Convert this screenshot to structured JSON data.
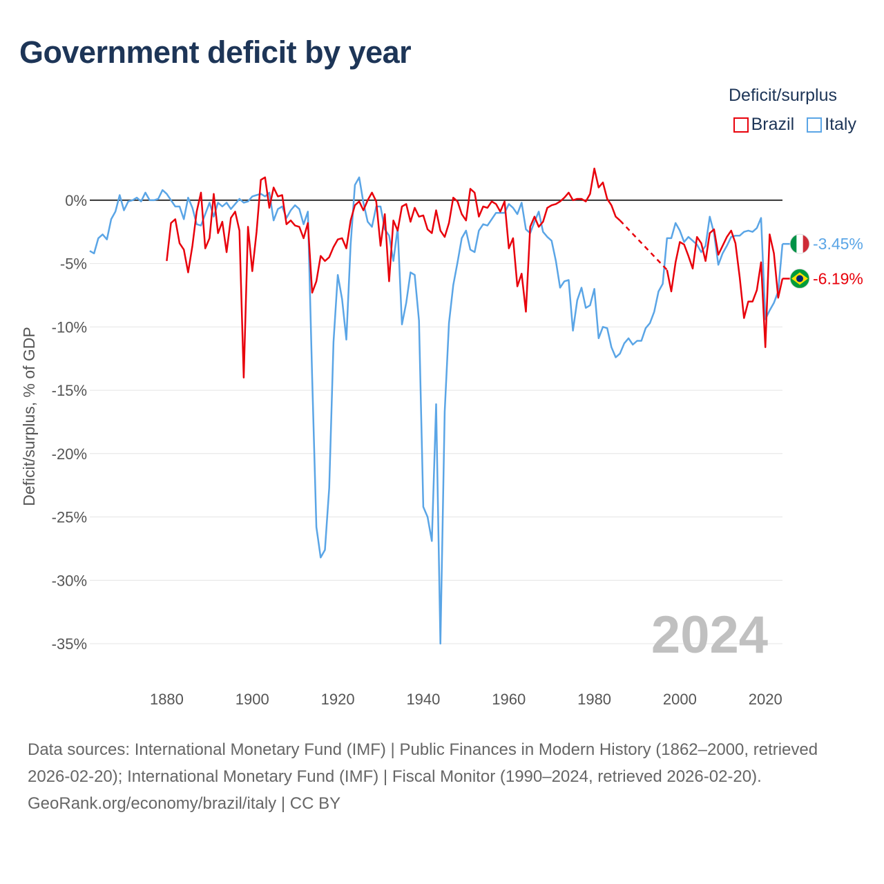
{
  "page_title": "Government deficit by year",
  "legend": {
    "title": "Deficit/surplus",
    "items": [
      {
        "name": "Brazil",
        "color": "#e8000b"
      },
      {
        "name": "Italy",
        "color": "#5aa5e6"
      }
    ]
  },
  "footer": {
    "sources": "Data sources: International Monetary Fund (IMF) | Public Finances in Modern History (1862–2000, retrieved 2026-02-20); International Monetary Fund (IMF) | Fiscal Monitor (1990–2024, retrieved 2026-02-20).",
    "credit": "GeoRank.org/economy/brazil/italy | CC BY"
  },
  "chart_data": {
    "type": "line",
    "title": "Government deficit by year",
    "xlabel": "",
    "ylabel": "Deficit/surplus, % of GDP",
    "xlim": [
      1862,
      2024
    ],
    "ylim": [
      -35,
      2.5
    ],
    "xticks": [
      1880,
      1900,
      1920,
      1940,
      1960,
      1980,
      2000,
      2020
    ],
    "x_tick_labels": [
      "1880",
      "1900",
      "1920",
      "1940",
      "1960",
      "1980",
      "2000",
      "2020"
    ],
    "yticks": [
      0,
      -5,
      -10,
      -15,
      -20,
      -25,
      -30,
      -35
    ],
    "y_tick_labels": [
      "0%",
      "-5%",
      "-10%",
      "-15%",
      "-20%",
      "-25%",
      "-30%",
      "-35%"
    ],
    "year_label": "2024",
    "grid": true,
    "series": [
      {
        "name": "Brazil",
        "color": "#e8000b",
        "end_label": "-6.19%",
        "flag": "brazil",
        "gap_dashed": [
          1986,
          1997
        ],
        "points": [
          [
            1880,
            -4.8
          ],
          [
            1881,
            -1.8
          ],
          [
            1882,
            -1.5
          ],
          [
            1883,
            -3.4
          ],
          [
            1884,
            -3.9
          ],
          [
            1885,
            -5.7
          ],
          [
            1886,
            -3.6
          ],
          [
            1887,
            -0.9
          ],
          [
            1888,
            0.6
          ],
          [
            1889,
            -3.8
          ],
          [
            1890,
            -3.0
          ],
          [
            1891,
            0.5
          ],
          [
            1892,
            -2.6
          ],
          [
            1893,
            -1.7
          ],
          [
            1894,
            -4.1
          ],
          [
            1895,
            -1.4
          ],
          [
            1896,
            -0.9
          ],
          [
            1897,
            -2.4
          ],
          [
            1898,
            -14.0
          ],
          [
            1899,
            -2.1
          ],
          [
            1900,
            -5.6
          ],
          [
            1901,
            -2.5
          ],
          [
            1902,
            1.6
          ],
          [
            1903,
            1.8
          ],
          [
            1904,
            -0.6
          ],
          [
            1905,
            1.0
          ],
          [
            1906,
            0.3
          ],
          [
            1907,
            0.4
          ],
          [
            1908,
            -1.9
          ],
          [
            1909,
            -1.6
          ],
          [
            1910,
            -2.0
          ],
          [
            1911,
            -2.1
          ],
          [
            1912,
            -3.0
          ],
          [
            1913,
            -1.8
          ],
          [
            1914,
            -7.3
          ],
          [
            1915,
            -6.4
          ],
          [
            1916,
            -4.4
          ],
          [
            1917,
            -4.8
          ],
          [
            1918,
            -4.5
          ],
          [
            1919,
            -3.7
          ],
          [
            1920,
            -3.1
          ],
          [
            1921,
            -3.0
          ],
          [
            1922,
            -3.8
          ],
          [
            1923,
            -1.6
          ],
          [
            1924,
            -0.4
          ],
          [
            1925,
            -0.1
          ],
          [
            1926,
            -0.8
          ],
          [
            1927,
            0.0
          ],
          [
            1928,
            0.6
          ],
          [
            1929,
            -0.1
          ],
          [
            1930,
            -3.6
          ],
          [
            1931,
            -1.1
          ],
          [
            1932,
            -6.4
          ],
          [
            1933,
            -1.6
          ],
          [
            1934,
            -2.4
          ],
          [
            1935,
            -0.5
          ],
          [
            1936,
            -0.3
          ],
          [
            1937,
            -1.7
          ],
          [
            1938,
            -0.6
          ],
          [
            1939,
            -1.3
          ],
          [
            1940,
            -1.2
          ],
          [
            1941,
            -2.3
          ],
          [
            1942,
            -2.6
          ],
          [
            1943,
            -0.8
          ],
          [
            1944,
            -2.4
          ],
          [
            1945,
            -2.9
          ],
          [
            1946,
            -1.8
          ],
          [
            1947,
            0.2
          ],
          [
            1948,
            -0.1
          ],
          [
            1949,
            -1.1
          ],
          [
            1950,
            -1.6
          ],
          [
            1951,
            0.9
          ],
          [
            1952,
            0.6
          ],
          [
            1953,
            -1.3
          ],
          [
            1954,
            -0.5
          ],
          [
            1955,
            -0.6
          ],
          [
            1956,
            -0.1
          ],
          [
            1957,
            -0.3
          ],
          [
            1958,
            -0.9
          ],
          [
            1959,
            -0.1
          ],
          [
            1960,
            -3.8
          ],
          [
            1961,
            -3.0
          ],
          [
            1962,
            -6.8
          ],
          [
            1963,
            -5.8
          ],
          [
            1964,
            -8.8
          ],
          [
            1965,
            -2.1
          ],
          [
            1966,
            -1.3
          ],
          [
            1967,
            -2.1
          ],
          [
            1968,
            -1.7
          ],
          [
            1969,
            -0.6
          ],
          [
            1970,
            -0.4
          ],
          [
            1971,
            -0.3
          ],
          [
            1972,
            -0.1
          ],
          [
            1973,
            0.2
          ],
          [
            1974,
            0.6
          ],
          [
            1975,
            0.0
          ],
          [
            1976,
            0.1
          ],
          [
            1977,
            0.1
          ],
          [
            1978,
            -0.1
          ],
          [
            1979,
            0.5
          ],
          [
            1980,
            2.5
          ],
          [
            1981,
            1.0
          ],
          [
            1982,
            1.4
          ],
          [
            1983,
            0.1
          ],
          [
            1984,
            -0.4
          ],
          [
            1985,
            -1.3
          ],
          [
            1986,
            -1.6
          ],
          [
            1997,
            -5.5
          ],
          [
            1998,
            -7.2
          ],
          [
            1999,
            -4.9
          ],
          [
            2000,
            -3.3
          ],
          [
            2001,
            -3.5
          ],
          [
            2002,
            -4.4
          ],
          [
            2003,
            -5.4
          ],
          [
            2004,
            -2.9
          ],
          [
            2005,
            -3.4
          ],
          [
            2006,
            -4.8
          ],
          [
            2007,
            -2.6
          ],
          [
            2008,
            -2.3
          ],
          [
            2009,
            -4.3
          ],
          [
            2010,
            -3.6
          ],
          [
            2011,
            -2.9
          ],
          [
            2012,
            -2.4
          ],
          [
            2013,
            -3.4
          ],
          [
            2014,
            -6.1
          ],
          [
            2015,
            -9.3
          ],
          [
            2016,
            -8.0
          ],
          [
            2017,
            -8.0
          ],
          [
            2018,
            -7.1
          ],
          [
            2019,
            -4.9
          ],
          [
            2020,
            -11.6
          ],
          [
            2021,
            -2.7
          ],
          [
            2022,
            -4.2
          ],
          [
            2023,
            -7.7
          ],
          [
            2024,
            -6.19
          ]
        ]
      },
      {
        "name": "Italy",
        "color": "#5aa5e6",
        "end_label": "-3.45%",
        "flag": "italy",
        "points": [
          [
            1862,
            -4.0
          ],
          [
            1863,
            -4.2
          ],
          [
            1864,
            -3.0
          ],
          [
            1865,
            -2.7
          ],
          [
            1866,
            -3.1
          ],
          [
            1867,
            -1.5
          ],
          [
            1868,
            -0.9
          ],
          [
            1869,
            0.4
          ],
          [
            1870,
            -0.8
          ],
          [
            1871,
            -0.1
          ],
          [
            1872,
            0.0
          ],
          [
            1873,
            0.2
          ],
          [
            1874,
            -0.1
          ],
          [
            1875,
            0.6
          ],
          [
            1876,
            0.0
          ],
          [
            1877,
            0.0
          ],
          [
            1878,
            0.1
          ],
          [
            1879,
            0.8
          ],
          [
            1880,
            0.5
          ],
          [
            1881,
            0.0
          ],
          [
            1882,
            -0.5
          ],
          [
            1883,
            -0.5
          ],
          [
            1884,
            -1.5
          ],
          [
            1885,
            0.2
          ],
          [
            1886,
            -0.6
          ],
          [
            1887,
            -1.9
          ],
          [
            1888,
            -2.0
          ],
          [
            1889,
            -1.1
          ],
          [
            1890,
            -0.2
          ],
          [
            1891,
            -1.3
          ],
          [
            1892,
            -0.2
          ],
          [
            1893,
            -0.5
          ],
          [
            1894,
            -0.2
          ],
          [
            1895,
            -0.7
          ],
          [
            1896,
            -0.3
          ],
          [
            1897,
            0.1
          ],
          [
            1898,
            -0.2
          ],
          [
            1899,
            -0.1
          ],
          [
            1900,
            0.3
          ],
          [
            1901,
            0.4
          ],
          [
            1902,
            0.5
          ],
          [
            1903,
            0.3
          ],
          [
            1904,
            0.6
          ],
          [
            1905,
            -1.6
          ],
          [
            1906,
            -0.7
          ],
          [
            1907,
            -0.5
          ],
          [
            1908,
            -1.4
          ],
          [
            1909,
            -0.8
          ],
          [
            1910,
            -0.4
          ],
          [
            1911,
            -0.7
          ],
          [
            1912,
            -1.9
          ],
          [
            1913,
            -0.9
          ],
          [
            1914,
            -14.0
          ],
          [
            1915,
            -25.8
          ],
          [
            1916,
            -28.2
          ],
          [
            1917,
            -27.6
          ],
          [
            1918,
            -22.7
          ],
          [
            1919,
            -11.2
          ],
          [
            1920,
            -5.9
          ],
          [
            1921,
            -7.8
          ],
          [
            1922,
            -11.0
          ],
          [
            1923,
            -3.5
          ],
          [
            1924,
            1.2
          ],
          [
            1925,
            1.8
          ],
          [
            1926,
            -0.2
          ],
          [
            1927,
            -1.7
          ],
          [
            1928,
            -2.1
          ],
          [
            1929,
            -0.5
          ],
          [
            1930,
            -0.5
          ],
          [
            1931,
            -2.3
          ],
          [
            1932,
            -2.8
          ],
          [
            1933,
            -4.8
          ],
          [
            1934,
            -2.2
          ],
          [
            1935,
            -9.8
          ],
          [
            1936,
            -8.1
          ],
          [
            1937,
            -5.7
          ],
          [
            1938,
            -5.9
          ],
          [
            1939,
            -9.5
          ],
          [
            1940,
            -24.2
          ],
          [
            1941,
            -25.0
          ],
          [
            1942,
            -26.9
          ],
          [
            1943,
            -16.1
          ],
          [
            1944,
            -35.0
          ],
          [
            1945,
            -16.7
          ],
          [
            1946,
            -9.7
          ],
          [
            1947,
            -6.7
          ],
          [
            1948,
            -4.9
          ],
          [
            1949,
            -3.0
          ],
          [
            1950,
            -2.4
          ],
          [
            1951,
            -3.9
          ],
          [
            1952,
            -4.1
          ],
          [
            1953,
            -2.4
          ],
          [
            1954,
            -1.9
          ],
          [
            1955,
            -2.0
          ],
          [
            1956,
            -1.5
          ],
          [
            1957,
            -1.0
          ],
          [
            1958,
            -1.0
          ],
          [
            1959,
            -1.0
          ],
          [
            1960,
            -0.3
          ],
          [
            1961,
            -0.6
          ],
          [
            1962,
            -1.1
          ],
          [
            1963,
            -0.2
          ],
          [
            1964,
            -2.3
          ],
          [
            1965,
            -2.6
          ],
          [
            1966,
            -1.7
          ],
          [
            1967,
            -0.9
          ],
          [
            1968,
            -2.5
          ],
          [
            1969,
            -2.9
          ],
          [
            1970,
            -3.2
          ],
          [
            1971,
            -4.8
          ],
          [
            1972,
            -6.9
          ],
          [
            1973,
            -6.4
          ],
          [
            1974,
            -6.3
          ],
          [
            1975,
            -10.3
          ],
          [
            1976,
            -7.9
          ],
          [
            1977,
            -6.9
          ],
          [
            1978,
            -8.5
          ],
          [
            1979,
            -8.3
          ],
          [
            1980,
            -7.0
          ],
          [
            1981,
            -10.9
          ],
          [
            1982,
            -10.0
          ],
          [
            1983,
            -10.1
          ],
          [
            1984,
            -11.6
          ],
          [
            1985,
            -12.4
          ],
          [
            1986,
            -12.1
          ],
          [
            1987,
            -11.3
          ],
          [
            1988,
            -10.9
          ],
          [
            1989,
            -11.4
          ],
          [
            1990,
            -11.1
          ],
          [
            1991,
            -11.1
          ],
          [
            1992,
            -10.1
          ],
          [
            1993,
            -9.7
          ],
          [
            1994,
            -8.8
          ],
          [
            1995,
            -7.2
          ],
          [
            1996,
            -6.6
          ],
          [
            1997,
            -3.0
          ],
          [
            1998,
            -3.0
          ],
          [
            1999,
            -1.8
          ],
          [
            2000,
            -2.4
          ],
          [
            2001,
            -3.3
          ],
          [
            2002,
            -2.9
          ],
          [
            2003,
            -3.2
          ],
          [
            2004,
            -3.5
          ],
          [
            2005,
            -4.1
          ],
          [
            2006,
            -3.6
          ],
          [
            2007,
            -1.3
          ],
          [
            2008,
            -2.6
          ],
          [
            2009,
            -5.1
          ],
          [
            2010,
            -4.2
          ],
          [
            2011,
            -3.6
          ],
          [
            2012,
            -2.9
          ],
          [
            2013,
            -2.8
          ],
          [
            2014,
            -2.8
          ],
          [
            2015,
            -2.5
          ],
          [
            2016,
            -2.4
          ],
          [
            2017,
            -2.5
          ],
          [
            2018,
            -2.2
          ],
          [
            2019,
            -1.4
          ],
          [
            2020,
            -9.4
          ],
          [
            2021,
            -8.7
          ],
          [
            2022,
            -8.1
          ],
          [
            2023,
            -7.2
          ],
          [
            2024,
            -3.45
          ]
        ]
      }
    ]
  }
}
